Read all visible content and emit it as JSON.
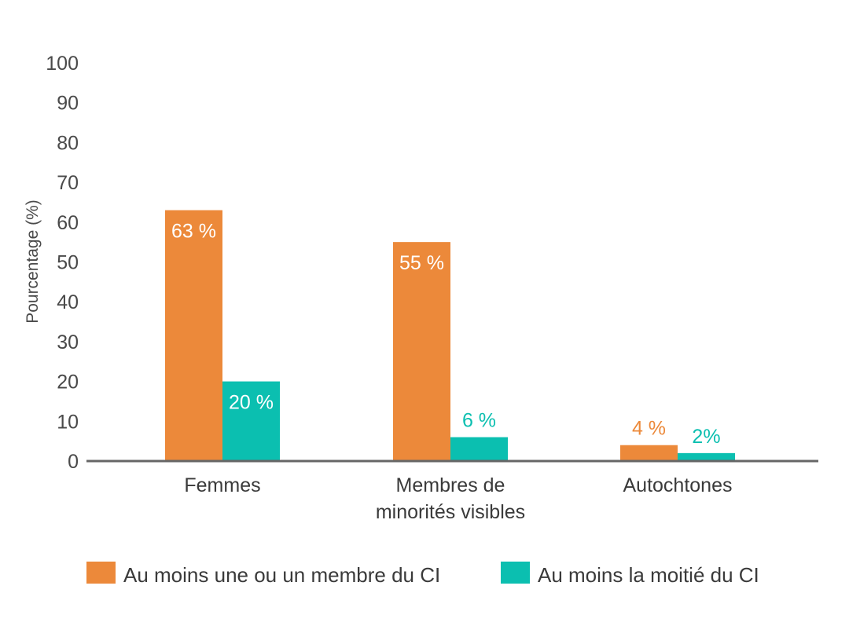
{
  "chart_data": {
    "type": "bar",
    "title": "",
    "xlabel": "",
    "ylabel": "Pourcentage (%)",
    "ylim": [
      0,
      100
    ],
    "yticks": [
      0,
      10,
      20,
      30,
      40,
      50,
      60,
      70,
      80,
      90,
      100
    ],
    "grid": false,
    "legend_position": "bottom",
    "categories": [
      [
        "Femmes"
      ],
      [
        "Membres de",
        "minorités visibles"
      ],
      [
        "Autochtones"
      ]
    ],
    "series": [
      {
        "name": "Au moins une ou un membre du CI",
        "color": "#ec893a",
        "values": [
          63,
          55,
          4
        ],
        "labels": [
          "63 %",
          "55 %",
          "4 %"
        ]
      },
      {
        "name": "Au moins la moitié du CI",
        "color": "#0bbfb0",
        "values": [
          20,
          6,
          2
        ],
        "labels": [
          "20 %",
          "6 %",
          "2%"
        ]
      }
    ]
  }
}
